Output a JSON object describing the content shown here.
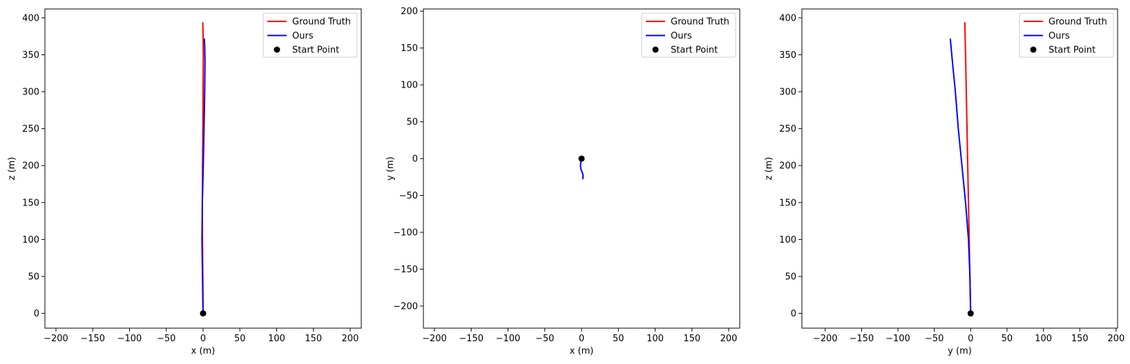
{
  "chart_data": [
    {
      "type": "line",
      "xlabel": "x (m)",
      "ylabel": "z (m)",
      "xlim": [
        -215,
        215
      ],
      "ylim": [
        -20,
        412
      ],
      "xticks": [
        -200,
        -150,
        -100,
        -50,
        0,
        50,
        100,
        150,
        200
      ],
      "yticks": [
        0,
        50,
        100,
        150,
        200,
        250,
        300,
        350,
        400
      ],
      "xtick_labels": [
        "−200",
        "−150",
        "−100",
        "−50",
        "0",
        "50",
        "100",
        "150",
        "200"
      ],
      "ytick_labels": [
        "0",
        "50",
        "100",
        "150",
        "200",
        "250",
        "300",
        "350",
        "400"
      ],
      "legend_position": "top-right",
      "series": [
        {
          "name": "Ground Truth",
          "color": "#ff0000",
          "x": [
            0,
            -0.3,
            -0.8,
            -1.0,
            -0.7,
            -0.3,
            0.0,
            0.3,
            0.0,
            -0.4
          ],
          "y": [
            0,
            50,
            100,
            150,
            200,
            250,
            300,
            350,
            380,
            394
          ]
        },
        {
          "name": "Ours",
          "color": "#0000ff",
          "x": [
            0,
            -0.8,
            -1.5,
            -1.0,
            0.3,
            1.3,
            2.2,
            2.6,
            2.3,
            1.6
          ],
          "y": [
            0,
            50,
            100,
            150,
            200,
            250,
            300,
            340,
            360,
            372
          ]
        },
        {
          "name": "Start Point",
          "color": "#000000",
          "marker": "circle",
          "x": [
            0
          ],
          "y": [
            0
          ]
        }
      ]
    },
    {
      "type": "line",
      "xlabel": "x (m)",
      "ylabel": "y (m)",
      "xlim": [
        -215,
        215
      ],
      "ylim": [
        -230,
        203
      ],
      "xticks": [
        -200,
        -150,
        -100,
        -50,
        0,
        50,
        100,
        150,
        200
      ],
      "yticks": [
        -200,
        -150,
        -100,
        -50,
        0,
        50,
        100,
        150,
        200
      ],
      "xtick_labels": [
        "−200",
        "−150",
        "−100",
        "−50",
        "0",
        "50",
        "100",
        "150",
        "200"
      ],
      "ytick_labels": [
        "−200",
        "−150",
        "−100",
        "−50",
        "0",
        "50",
        "100",
        "150",
        "200"
      ],
      "legend_position": "top-right",
      "series": [
        {
          "name": "Ground Truth",
          "color": "#ff0000",
          "x": [
            0,
            0.2,
            0.4
          ],
          "y": [
            0,
            -0.5,
            -1.0
          ]
        },
        {
          "name": "Ours",
          "color": "#0000ff",
          "x": [
            0,
            -1.0,
            -1.5,
            -1.0,
            0.5,
            1.8,
            2.0,
            1.6
          ],
          "y": [
            0,
            -5,
            -10,
            -14,
            -18,
            -21,
            -24,
            -28
          ]
        },
        {
          "name": "Start Point",
          "color": "#000000",
          "marker": "circle",
          "x": [
            0
          ],
          "y": [
            0
          ]
        }
      ]
    },
    {
      "type": "line",
      "xlabel": "y (m)",
      "ylabel": "z (m)",
      "xlim": [
        -232,
        202
      ],
      "ylim": [
        -20,
        412
      ],
      "xticks": [
        -200,
        -150,
        -100,
        -50,
        0,
        50,
        100,
        150,
        200
      ],
      "yticks": [
        0,
        50,
        100,
        150,
        200,
        250,
        300,
        350,
        400
      ],
      "xtick_labels": [
        "−200",
        "−150",
        "−100",
        "−50",
        "0",
        "50",
        "100",
        "150",
        "200"
      ],
      "ytick_labels": [
        "0",
        "50",
        "100",
        "150",
        "200",
        "250",
        "300",
        "350",
        "400"
      ],
      "legend_position": "top-right",
      "series": [
        {
          "name": "Ground Truth",
          "color": "#ff0000",
          "x": [
            0,
            -1,
            -2,
            -3,
            -4,
            -5,
            -6,
            -7,
            -8
          ],
          "y": [
            0,
            50,
            100,
            150,
            200,
            250,
            300,
            350,
            394
          ]
        },
        {
          "name": "Ours",
          "color": "#0000ff",
          "x": [
            0,
            -1,
            -3,
            -7,
            -12,
            -17,
            -21,
            -25,
            -28
          ],
          "y": [
            0,
            50,
            100,
            150,
            200,
            250,
            300,
            340,
            372
          ]
        },
        {
          "name": "Start Point",
          "color": "#000000",
          "marker": "circle",
          "x": [
            0
          ],
          "y": [
            0
          ]
        }
      ]
    }
  ]
}
